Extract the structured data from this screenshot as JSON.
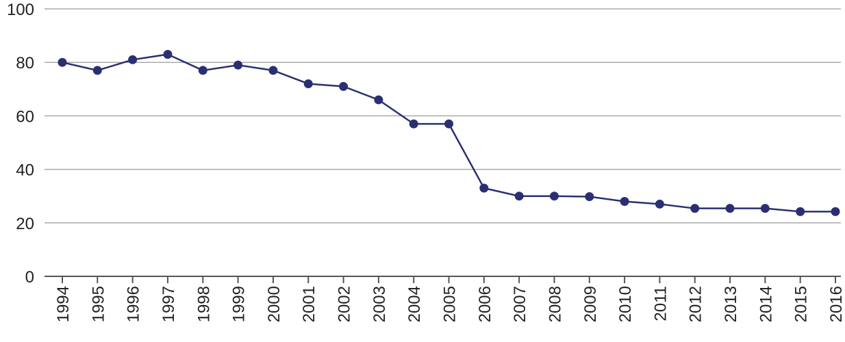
{
  "chart_data": {
    "type": "line",
    "categories": [
      "1994",
      "1995",
      "1996",
      "1997",
      "1998",
      "1999",
      "2000",
      "2001",
      "2002",
      "2003",
      "2004",
      "2005",
      "2006",
      "2007",
      "2008",
      "2009",
      "2010",
      "2011",
      "2012",
      "2013",
      "2014",
      "2015",
      "2016"
    ],
    "values": [
      80,
      77,
      81,
      83,
      77,
      79,
      77,
      72,
      71,
      66,
      57,
      57,
      33,
      30,
      30,
      29.8,
      28,
      27,
      25.4,
      25.4,
      25.4,
      24.2,
      24.2
    ],
    "color": "#2b2f72",
    "ylim": [
      0,
      100
    ],
    "yticks": [
      0,
      20,
      40,
      60,
      80,
      100
    ],
    "grid": true
  }
}
